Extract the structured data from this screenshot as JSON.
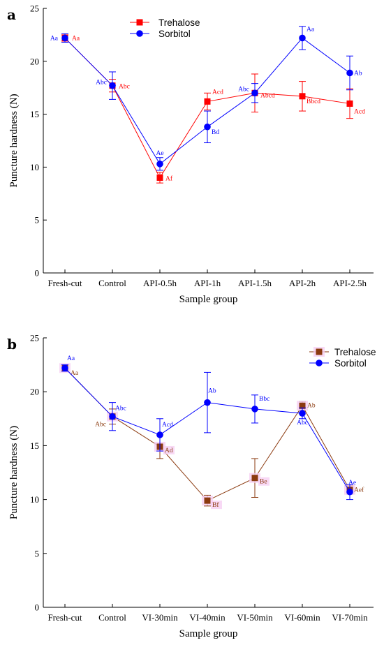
{
  "chart_data": [
    {
      "type": "line",
      "panel": "a",
      "xlabel": "Sample group",
      "ylabel": "Puncture hardness (N)",
      "categories": [
        "Fresh-cut",
        "Control",
        "API-0.5h",
        "API-1h",
        "API-1.5h",
        "API-2h",
        "API-2.5h"
      ],
      "ylim": [
        0,
        25
      ],
      "yticks": [
        0,
        5,
        10,
        15,
        20,
        25
      ],
      "legend_position": "top-center",
      "grid": false,
      "series": [
        {
          "name": "Trehalose",
          "color": "#ff0000",
          "marker": "square",
          "values": [
            22.2,
            17.7,
            9.0,
            16.2,
            17.0,
            16.7,
            16.0
          ],
          "errors": [
            0.3,
            0.6,
            0.5,
            0.8,
            1.8,
            1.4,
            1.4
          ],
          "labels": [
            "Aa",
            "Abc",
            "Af",
            "Acd",
            "Abcd",
            "Bbcd",
            "Acd"
          ]
        },
        {
          "name": "Sorbitol",
          "color": "#0000ff",
          "marker": "circle",
          "values": [
            22.2,
            17.7,
            10.3,
            13.8,
            17.0,
            22.2,
            18.9
          ],
          "errors": [
            0.4,
            1.3,
            0.6,
            1.5,
            0.9,
            1.1,
            1.6
          ],
          "labels": [
            "Aa",
            "Abc",
            "Ae",
            "Bd",
            "Abc",
            "Aa",
            "Ab"
          ]
        }
      ]
    },
    {
      "type": "line",
      "panel": "b",
      "xlabel": "Sample group",
      "ylabel": "Puncture hardness (N)",
      "categories": [
        "Fresh-cut",
        "Control",
        "VI-30min",
        "VI-40min",
        "VI-50min",
        "VI-60min",
        "VI-70min"
      ],
      "ylim": [
        0,
        25
      ],
      "yticks": [
        0,
        5,
        10,
        15,
        20,
        25
      ],
      "legend_position": "top-right",
      "grid": false,
      "series": [
        {
          "name": "Trehalose",
          "color": "#8b3a0f",
          "marker": "square",
          "values": [
            22.2,
            17.7,
            14.9,
            9.9,
            12.0,
            18.7,
            10.9
          ],
          "errors": [
            0.3,
            0.7,
            1.1,
            0.5,
            1.8,
            0.4,
            0.4
          ],
          "labels": [
            "Aa",
            "Abc",
            "Ad",
            "Bf",
            "Be",
            "Ab",
            "Aef"
          ]
        },
        {
          "name": "Sorbitol",
          "color": "#0000ff",
          "marker": "circle",
          "values": [
            22.2,
            17.7,
            16.0,
            19.0,
            18.4,
            18.0,
            10.7
          ],
          "errors": [
            0.3,
            1.3,
            1.5,
            2.8,
            1.3,
            0.5,
            0.7
          ],
          "labels": [
            "Aa",
            "Abc",
            "Acd",
            "Ab",
            "Bbc",
            "Abc",
            "Ae"
          ]
        }
      ]
    }
  ]
}
